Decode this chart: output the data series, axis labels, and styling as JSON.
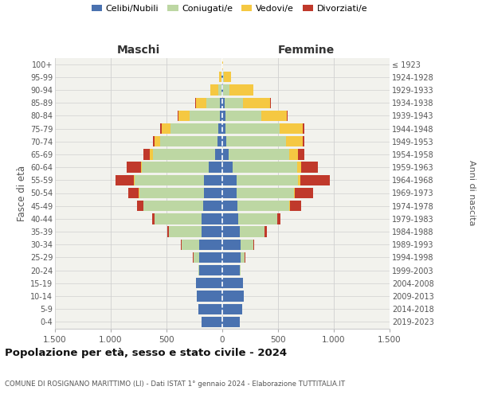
{
  "age_groups_bottom_to_top": [
    "0-4",
    "5-9",
    "10-14",
    "15-19",
    "20-24",
    "25-29",
    "30-34",
    "35-39",
    "40-44",
    "45-49",
    "50-54",
    "55-59",
    "60-64",
    "65-69",
    "70-74",
    "75-79",
    "80-84",
    "85-89",
    "90-94",
    "95-99",
    "100+"
  ],
  "birth_years_bottom_to_top": [
    "2019-2023",
    "2014-2018",
    "2009-2013",
    "2004-2008",
    "1999-2003",
    "1994-1998",
    "1989-1993",
    "1984-1988",
    "1979-1983",
    "1974-1978",
    "1969-1973",
    "1964-1968",
    "1959-1963",
    "1954-1958",
    "1949-1953",
    "1944-1948",
    "1939-1943",
    "1934-1938",
    "1929-1933",
    "1924-1928",
    "≤ 1923"
  ],
  "colors": {
    "celibi": "#4a72b0",
    "coniugati": "#bdd7a3",
    "vedovi": "#f5c842",
    "divorziati": "#c0392b"
  },
  "maschi": {
    "celibi": [
      185,
      215,
      230,
      235,
      205,
      210,
      210,
      185,
      185,
      175,
      165,
      165,
      120,
      65,
      45,
      35,
      25,
      20,
      10,
      5,
      2
    ],
    "coniugati": [
      0,
      0,
      0,
      4,
      12,
      48,
      155,
      295,
      420,
      530,
      580,
      620,
      600,
      555,
      510,
      430,
      265,
      120,
      25,
      5,
      0
    ],
    "vedovi": [
      0,
      0,
      0,
      0,
      0,
      0,
      0,
      0,
      5,
      5,
      5,
      5,
      10,
      30,
      50,
      80,
      100,
      95,
      75,
      18,
      0
    ],
    "divorziati": [
      0,
      0,
      0,
      0,
      0,
      4,
      5,
      12,
      18,
      55,
      95,
      165,
      130,
      60,
      15,
      15,
      10,
      8,
      0,
      0,
      0
    ]
  },
  "femmine": {
    "celibi": [
      155,
      175,
      195,
      185,
      155,
      165,
      165,
      155,
      145,
      135,
      125,
      125,
      95,
      58,
      38,
      28,
      28,
      18,
      10,
      5,
      2
    ],
    "coniugati": [
      0,
      0,
      0,
      4,
      8,
      38,
      115,
      225,
      345,
      465,
      515,
      555,
      575,
      545,
      535,
      485,
      325,
      165,
      55,
      8,
      0
    ],
    "vedovi": [
      0,
      0,
      0,
      0,
      0,
      0,
      0,
      0,
      4,
      8,
      13,
      23,
      38,
      78,
      148,
      208,
      228,
      245,
      215,
      65,
      8
    ],
    "divorziati": [
      0,
      0,
      0,
      0,
      0,
      4,
      4,
      18,
      28,
      98,
      158,
      258,
      148,
      58,
      12,
      12,
      8,
      8,
      0,
      0,
      0
    ]
  },
  "xlim": 1500,
  "title": "Popolazione per età, sesso e stato civile - 2024",
  "subtitle": "COMUNE DI ROSIGNANO MARITTIMO (LI) - Dati ISTAT 1° gennaio 2024 - Elaborazione TUTTITALIA.IT",
  "xlabel_left": "Maschi",
  "xlabel_right": "Femmine",
  "ylabel_left": "Fasce di età",
  "ylabel_right": "Anni di nascita",
  "legend_labels": [
    "Celibi/Nubili",
    "Coniugati/e",
    "Vedovi/e",
    "Divorziati/e"
  ],
  "background_color": "#ffffff",
  "plot_bg": "#f2f2ed",
  "grid_color": "#d0d0d0"
}
